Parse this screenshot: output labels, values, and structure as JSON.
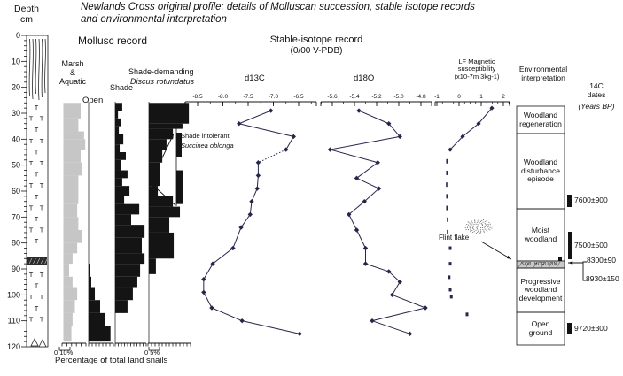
{
  "title": {
    "line1": "Newlands Cross original profile: details of Molluscan succession, stable isotope records",
    "line2": "and environmental interpretation"
  },
  "depth_axis": {
    "title": "Depth\ncm",
    "unit": "cm",
    "min": 0,
    "max": 120,
    "major_step": 10,
    "minor_step": 2
  },
  "lithology": {
    "tufa_symbol": "T",
    "gravel_symbol": "triangle",
    "soil_band_depth": [
      86,
      89
    ]
  },
  "mollusc": {
    "header": "Mollusc record",
    "footer": "Percentage of total land snails",
    "scales": {
      "left": "0 10%",
      "right": "0 5%"
    },
    "labels": {
      "marsh": "Marsh\n&\nAquatic",
      "open": "Open",
      "shade": "Shade",
      "discus_line1": "Shade-demanding",
      "discus_line2": "Discus rotundatus",
      "succinea_line1": "Shade intolerant",
      "succinea_line2": "Succinea oblonga"
    }
  },
  "isotope": {
    "header": "Stable-isotope record",
    "subheader": "(0/00 V-PDB)",
    "d13c_label": "d13C",
    "d18o_label": "d18O"
  },
  "magsus": {
    "label": "LF Magnetic\nsusceptibility\n(x10-7m 3kg-1)",
    "flint_label": "Flint flake"
  },
  "environment": {
    "header": "Environmental\ninterpretation",
    "zones": [
      {
        "label": "Woodland\nregeneration",
        "depth_from": 27,
        "depth_to": 38
      },
      {
        "label": "Woodland\ndisturbance\nepisode",
        "depth_from": 38,
        "depth_to": 67
      },
      {
        "label": "Moist\nwoodland",
        "depth_from": 67,
        "depth_to": 87
      },
      {
        "label": "Progressive\nwoodland\ndevelopment",
        "depth_from": 90,
        "depth_to": 107
      },
      {
        "label": "Open\nground",
        "depth_from": 107,
        "depth_to": 120
      }
    ],
    "soil_horizon": "SOIL HORIZON"
  },
  "c14": {
    "header_line1": "14C\ndates",
    "header_line2": "(Years BP)",
    "dates": [
      "7600±900",
      "7500±500",
      "8300±90",
      "8930±150",
      "9720±300"
    ],
    "date_depths": [
      [
        61,
        66
      ],
      [
        76,
        86
      ],
      [
        87,
        90
      ],
      [
        87,
        90
      ],
      [
        111,
        115
      ]
    ]
  },
  "chart_data": [
    {
      "type": "bar",
      "name": "marsh_aquatic",
      "orientation": "horizontal",
      "unit": "% of total land snails",
      "bars": [
        [
          26,
          32,
          15
        ],
        [
          32,
          37,
          13
        ],
        [
          37,
          40,
          18
        ],
        [
          40,
          44,
          19
        ],
        [
          44,
          49,
          15
        ],
        [
          49,
          54,
          16
        ],
        [
          54,
          60,
          13
        ],
        [
          60,
          65,
          13
        ],
        [
          65,
          70,
          12
        ],
        [
          70,
          75,
          13
        ],
        [
          75,
          80,
          16
        ],
        [
          80,
          84,
          12
        ],
        [
          84,
          88,
          8
        ],
        [
          88,
          93,
          5
        ],
        [
          93,
          97,
          8
        ],
        [
          97,
          102,
          12
        ],
        [
          102,
          107,
          10
        ],
        [
          107,
          112,
          8
        ],
        [
          112,
          118,
          7
        ]
      ]
    },
    {
      "type": "bar",
      "name": "open",
      "orientation": "horizontal",
      "unit": "% of total land snails",
      "bars": [
        [
          88,
          93,
          1.5
        ],
        [
          93,
          97,
          2.3
        ],
        [
          97,
          102,
          5.4
        ],
        [
          102,
          107,
          10
        ],
        [
          107,
          112,
          14
        ],
        [
          112,
          118,
          19
        ]
      ]
    },
    {
      "type": "bar",
      "name": "shade",
      "orientation": "horizontal",
      "unit": "% of total land snails",
      "bars": [
        [
          26,
          29,
          3.3
        ],
        [
          29,
          32,
          1.3
        ],
        [
          32,
          35,
          2.9
        ],
        [
          35,
          38,
          1.7
        ],
        [
          38,
          42,
          3.8
        ],
        [
          42,
          45,
          2.1
        ],
        [
          45,
          48,
          5
        ],
        [
          48,
          52,
          2.9
        ],
        [
          52,
          55,
          5.8
        ],
        [
          55,
          58,
          3.3
        ],
        [
          58,
          62,
          6.7
        ],
        [
          62,
          65,
          4.2
        ],
        [
          65,
          69,
          11.3
        ],
        [
          69,
          73,
          7.5
        ],
        [
          73,
          78,
          13.8
        ],
        [
          78,
          84,
          12.5
        ],
        [
          84,
          88,
          13.8
        ],
        [
          88,
          93,
          11.7
        ],
        [
          93,
          97,
          10.4
        ],
        [
          97,
          102,
          8.3
        ],
        [
          102,
          107,
          5.8
        ]
      ]
    },
    {
      "type": "bar",
      "name": "discus",
      "orientation": "horizontal",
      "unit": "% of total land snails",
      "bars": [
        [
          26,
          34,
          18.8
        ],
        [
          34,
          36,
          15.8
        ],
        [
          36,
          40,
          11.3
        ],
        [
          40,
          44,
          8.3
        ],
        [
          44,
          49,
          6.3
        ],
        [
          49,
          58,
          5
        ],
        [
          58,
          62,
          4.2
        ],
        [
          62,
          66,
          11.3
        ],
        [
          66,
          70,
          14.6
        ],
        [
          70,
          76,
          9.6
        ],
        [
          76,
          86,
          11.7
        ],
        [
          86,
          92,
          3.3
        ]
      ]
    },
    {
      "type": "bar",
      "name": "succinea",
      "orientation": "horizontal",
      "unit": "% of total land snails",
      "bars": [
        [
          37.5,
          47,
          2.5
        ],
        [
          52,
          65,
          3.3
        ]
      ]
    },
    {
      "type": "line",
      "name": "d13C",
      "xlim": [
        -8.75,
        -6.25
      ],
      "ticks": [
        -8.5,
        -8.0,
        -7.5,
        -7.0,
        -6.5
      ],
      "dashed_segments": [
        3
      ],
      "points": [
        [
          29,
          -7.05
        ],
        [
          34,
          -7.68
        ],
        [
          39,
          -6.6
        ],
        [
          44,
          -6.75
        ],
        [
          49,
          -7.3
        ],
        [
          54,
          -7.3
        ],
        [
          59,
          -7.32
        ],
        [
          64,
          -7.43
        ],
        [
          69,
          -7.46
        ],
        [
          74,
          -7.64
        ],
        [
          82,
          -7.8
        ],
        [
          88,
          -8.2
        ],
        [
          94,
          -8.38
        ],
        [
          99,
          -8.38
        ],
        [
          105,
          -8.22
        ],
        [
          110,
          -7.62
        ],
        [
          115,
          -6.48
        ]
      ]
    },
    {
      "type": "line",
      "name": "d18O",
      "xlim": [
        -5.7,
        -4.7
      ],
      "ticks": [
        -5.6,
        -5.4,
        -5.2,
        -5.0,
        -4.8
      ],
      "dashed_segments": [],
      "points": [
        [
          29,
          -5.36
        ],
        [
          34,
          -5.09
        ],
        [
          39,
          -4.99
        ],
        [
          44,
          -5.62
        ],
        [
          49,
          -5.19
        ],
        [
          55,
          -5.38
        ],
        [
          59,
          -5.18
        ],
        [
          64,
          -5.31
        ],
        [
          69,
          -5.45
        ],
        [
          75,
          -5.38
        ],
        [
          82,
          -5.3
        ],
        [
          88,
          -5.3
        ],
        [
          91,
          -5.09
        ],
        [
          95,
          -4.99
        ],
        [
          100,
          -5.06
        ],
        [
          105,
          -4.76
        ],
        [
          110,
          -5.24
        ],
        [
          115,
          -4.9
        ]
      ]
    },
    {
      "type": "scatter",
      "name": "lf_magnetic_susceptibility",
      "xlim": [
        -1.1,
        2.3
      ],
      "ticks": [
        -1,
        0,
        1,
        2
      ],
      "line_points": [
        [
          28,
          1.48
        ],
        [
          34,
          0.88
        ],
        [
          39,
          0.16
        ],
        [
          44,
          -0.4
        ]
      ],
      "dash_points": [
        [
          48.5,
          -0.55
        ],
        [
          53,
          -0.55
        ],
        [
          57.5,
          -0.56
        ],
        [
          62,
          -0.55
        ],
        [
          66.5,
          -0.55
        ],
        [
          71,
          -0.52
        ],
        [
          75.8,
          -0.52
        ]
      ],
      "square_points": [
        [
          82,
          -0.4
        ],
        [
          88,
          -0.4
        ],
        [
          93.2,
          -0.45
        ],
        [
          98,
          -0.4
        ],
        [
          100.7,
          -0.35
        ],
        [
          107.5,
          0.36
        ]
      ]
    }
  ]
}
